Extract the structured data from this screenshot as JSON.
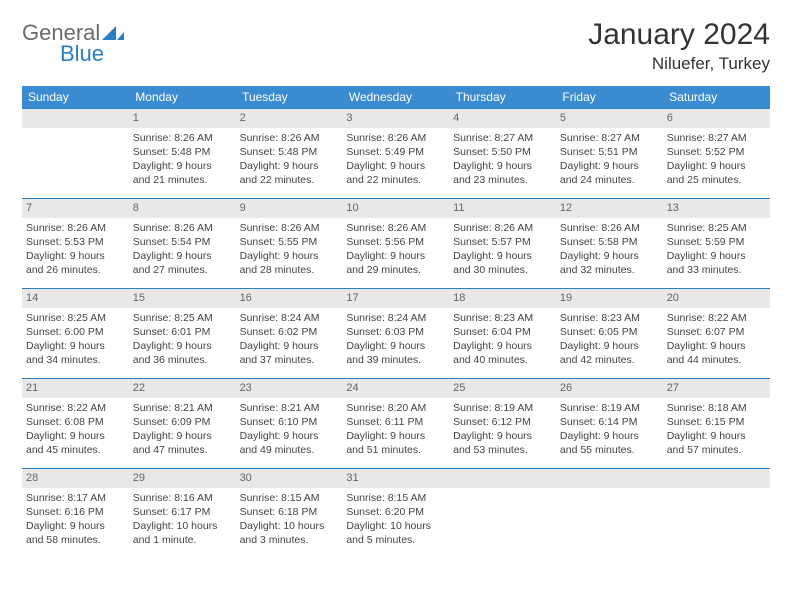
{
  "brand": {
    "part1": "General",
    "part2": "Blue"
  },
  "header": {
    "title": "January 2024",
    "location": "Niluefer, Turkey"
  },
  "colors": {
    "header_bg": "#3b8bd0",
    "row_border": "#2b7dc4",
    "daynum_bg": "#e8e8e8",
    "brand_gray": "#6b6b6b",
    "brand_blue": "#2b7dc4"
  },
  "daysOfWeek": [
    "Sunday",
    "Monday",
    "Tuesday",
    "Wednesday",
    "Thursday",
    "Friday",
    "Saturday"
  ],
  "weeks": [
    [
      null,
      {
        "n": "1",
        "sr": "Sunrise: 8:26 AM",
        "ss": "Sunset: 5:48 PM",
        "d1": "Daylight: 9 hours",
        "d2": "and 21 minutes."
      },
      {
        "n": "2",
        "sr": "Sunrise: 8:26 AM",
        "ss": "Sunset: 5:48 PM",
        "d1": "Daylight: 9 hours",
        "d2": "and 22 minutes."
      },
      {
        "n": "3",
        "sr": "Sunrise: 8:26 AM",
        "ss": "Sunset: 5:49 PM",
        "d1": "Daylight: 9 hours",
        "d2": "and 22 minutes."
      },
      {
        "n": "4",
        "sr": "Sunrise: 8:27 AM",
        "ss": "Sunset: 5:50 PM",
        "d1": "Daylight: 9 hours",
        "d2": "and 23 minutes."
      },
      {
        "n": "5",
        "sr": "Sunrise: 8:27 AM",
        "ss": "Sunset: 5:51 PM",
        "d1": "Daylight: 9 hours",
        "d2": "and 24 minutes."
      },
      {
        "n": "6",
        "sr": "Sunrise: 8:27 AM",
        "ss": "Sunset: 5:52 PM",
        "d1": "Daylight: 9 hours",
        "d2": "and 25 minutes."
      }
    ],
    [
      {
        "n": "7",
        "sr": "Sunrise: 8:26 AM",
        "ss": "Sunset: 5:53 PM",
        "d1": "Daylight: 9 hours",
        "d2": "and 26 minutes."
      },
      {
        "n": "8",
        "sr": "Sunrise: 8:26 AM",
        "ss": "Sunset: 5:54 PM",
        "d1": "Daylight: 9 hours",
        "d2": "and 27 minutes."
      },
      {
        "n": "9",
        "sr": "Sunrise: 8:26 AM",
        "ss": "Sunset: 5:55 PM",
        "d1": "Daylight: 9 hours",
        "d2": "and 28 minutes."
      },
      {
        "n": "10",
        "sr": "Sunrise: 8:26 AM",
        "ss": "Sunset: 5:56 PM",
        "d1": "Daylight: 9 hours",
        "d2": "and 29 minutes."
      },
      {
        "n": "11",
        "sr": "Sunrise: 8:26 AM",
        "ss": "Sunset: 5:57 PM",
        "d1": "Daylight: 9 hours",
        "d2": "and 30 minutes."
      },
      {
        "n": "12",
        "sr": "Sunrise: 8:26 AM",
        "ss": "Sunset: 5:58 PM",
        "d1": "Daylight: 9 hours",
        "d2": "and 32 minutes."
      },
      {
        "n": "13",
        "sr": "Sunrise: 8:25 AM",
        "ss": "Sunset: 5:59 PM",
        "d1": "Daylight: 9 hours",
        "d2": "and 33 minutes."
      }
    ],
    [
      {
        "n": "14",
        "sr": "Sunrise: 8:25 AM",
        "ss": "Sunset: 6:00 PM",
        "d1": "Daylight: 9 hours",
        "d2": "and 34 minutes."
      },
      {
        "n": "15",
        "sr": "Sunrise: 8:25 AM",
        "ss": "Sunset: 6:01 PM",
        "d1": "Daylight: 9 hours",
        "d2": "and 36 minutes."
      },
      {
        "n": "16",
        "sr": "Sunrise: 8:24 AM",
        "ss": "Sunset: 6:02 PM",
        "d1": "Daylight: 9 hours",
        "d2": "and 37 minutes."
      },
      {
        "n": "17",
        "sr": "Sunrise: 8:24 AM",
        "ss": "Sunset: 6:03 PM",
        "d1": "Daylight: 9 hours",
        "d2": "and 39 minutes."
      },
      {
        "n": "18",
        "sr": "Sunrise: 8:23 AM",
        "ss": "Sunset: 6:04 PM",
        "d1": "Daylight: 9 hours",
        "d2": "and 40 minutes."
      },
      {
        "n": "19",
        "sr": "Sunrise: 8:23 AM",
        "ss": "Sunset: 6:05 PM",
        "d1": "Daylight: 9 hours",
        "d2": "and 42 minutes."
      },
      {
        "n": "20",
        "sr": "Sunrise: 8:22 AM",
        "ss": "Sunset: 6:07 PM",
        "d1": "Daylight: 9 hours",
        "d2": "and 44 minutes."
      }
    ],
    [
      {
        "n": "21",
        "sr": "Sunrise: 8:22 AM",
        "ss": "Sunset: 6:08 PM",
        "d1": "Daylight: 9 hours",
        "d2": "and 45 minutes."
      },
      {
        "n": "22",
        "sr": "Sunrise: 8:21 AM",
        "ss": "Sunset: 6:09 PM",
        "d1": "Daylight: 9 hours",
        "d2": "and 47 minutes."
      },
      {
        "n": "23",
        "sr": "Sunrise: 8:21 AM",
        "ss": "Sunset: 6:10 PM",
        "d1": "Daylight: 9 hours",
        "d2": "and 49 minutes."
      },
      {
        "n": "24",
        "sr": "Sunrise: 8:20 AM",
        "ss": "Sunset: 6:11 PM",
        "d1": "Daylight: 9 hours",
        "d2": "and 51 minutes."
      },
      {
        "n": "25",
        "sr": "Sunrise: 8:19 AM",
        "ss": "Sunset: 6:12 PM",
        "d1": "Daylight: 9 hours",
        "d2": "and 53 minutes."
      },
      {
        "n": "26",
        "sr": "Sunrise: 8:19 AM",
        "ss": "Sunset: 6:14 PM",
        "d1": "Daylight: 9 hours",
        "d2": "and 55 minutes."
      },
      {
        "n": "27",
        "sr": "Sunrise: 8:18 AM",
        "ss": "Sunset: 6:15 PM",
        "d1": "Daylight: 9 hours",
        "d2": "and 57 minutes."
      }
    ],
    [
      {
        "n": "28",
        "sr": "Sunrise: 8:17 AM",
        "ss": "Sunset: 6:16 PM",
        "d1": "Daylight: 9 hours",
        "d2": "and 58 minutes."
      },
      {
        "n": "29",
        "sr": "Sunrise: 8:16 AM",
        "ss": "Sunset: 6:17 PM",
        "d1": "Daylight: 10 hours",
        "d2": "and 1 minute."
      },
      {
        "n": "30",
        "sr": "Sunrise: 8:15 AM",
        "ss": "Sunset: 6:18 PM",
        "d1": "Daylight: 10 hours",
        "d2": "and 3 minutes."
      },
      {
        "n": "31",
        "sr": "Sunrise: 8:15 AM",
        "ss": "Sunset: 6:20 PM",
        "d1": "Daylight: 10 hours",
        "d2": "and 5 minutes."
      },
      null,
      null,
      null
    ]
  ]
}
